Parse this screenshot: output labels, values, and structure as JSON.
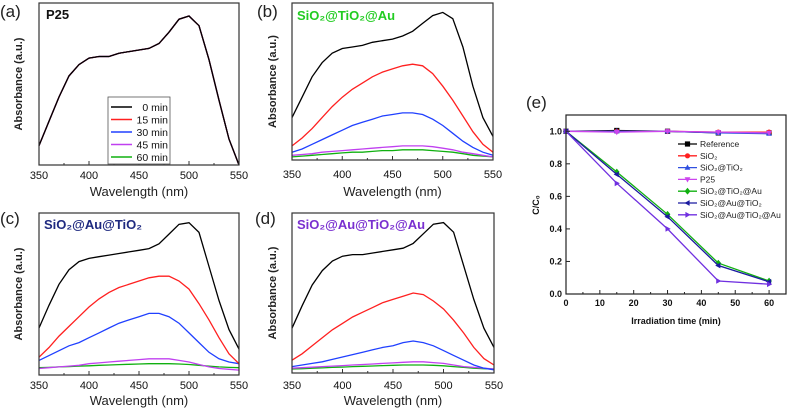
{
  "chart_data": [
    {
      "type": "line",
      "panel_label": "(a)",
      "title": "P25",
      "title_color": "#111111",
      "xlabel": "Wavelength (nm)",
      "ylabel": "Absorbance (a.u.)",
      "xlim": [
        350,
        550
      ],
      "xticks": [
        "350",
        "400",
        "450",
        "500",
        "550"
      ],
      "grid": false,
      "legend_position": "bottom-center",
      "x": [
        350,
        360,
        370,
        380,
        390,
        400,
        410,
        420,
        430,
        440,
        450,
        460,
        470,
        480,
        490,
        500,
        510,
        520,
        530,
        540,
        550
      ],
      "series": [
        {
          "name": "0 min",
          "color": "#000000",
          "values": [
            0.12,
            0.27,
            0.42,
            0.55,
            0.62,
            0.66,
            0.67,
            0.67,
            0.69,
            0.7,
            0.71,
            0.72,
            0.75,
            0.82,
            0.9,
            0.92,
            0.86,
            0.65,
            0.4,
            0.16,
            0.0
          ]
        },
        {
          "name": "15 min",
          "color": "#ff2020",
          "values": [
            0.12,
            0.27,
            0.42,
            0.55,
            0.62,
            0.66,
            0.67,
            0.67,
            0.69,
            0.7,
            0.71,
            0.72,
            0.75,
            0.82,
            0.9,
            0.92,
            0.86,
            0.65,
            0.4,
            0.16,
            0.0
          ]
        },
        {
          "name": "30 min",
          "color": "#2040ff",
          "values": [
            0.12,
            0.27,
            0.42,
            0.55,
            0.62,
            0.66,
            0.67,
            0.67,
            0.69,
            0.7,
            0.71,
            0.72,
            0.75,
            0.82,
            0.9,
            0.92,
            0.86,
            0.65,
            0.4,
            0.16,
            0.0
          ]
        },
        {
          "name": "45 min",
          "color": "#c040f0",
          "values": [
            0.12,
            0.27,
            0.42,
            0.55,
            0.62,
            0.66,
            0.67,
            0.67,
            0.69,
            0.7,
            0.71,
            0.72,
            0.75,
            0.82,
            0.9,
            0.92,
            0.86,
            0.65,
            0.4,
            0.16,
            0.0
          ]
        },
        {
          "name": "60 min",
          "color": "#10b010",
          "values": [
            0.12,
            0.27,
            0.42,
            0.55,
            0.62,
            0.66,
            0.67,
            0.67,
            0.69,
            0.7,
            0.71,
            0.72,
            0.75,
            0.82,
            0.9,
            0.92,
            0.86,
            0.65,
            0.4,
            0.16,
            0.0
          ]
        }
      ]
    },
    {
      "type": "line",
      "panel_label": "(b)",
      "title": "SiO₂@TiO₂@Au",
      "title_color": "#22cc22",
      "xlabel": "Wavelength (nm)",
      "ylabel": "Absorbance (a.u.)",
      "xlim": [
        350,
        550
      ],
      "xticks": [
        "350",
        "400",
        "450",
        "500",
        "550"
      ],
      "grid": false,
      "x": [
        350,
        360,
        370,
        380,
        390,
        400,
        410,
        420,
        430,
        440,
        450,
        460,
        470,
        480,
        490,
        500,
        510,
        520,
        530,
        540,
        550
      ],
      "series": [
        {
          "color": "#000000",
          "values": [
            0.27,
            0.4,
            0.53,
            0.62,
            0.68,
            0.71,
            0.72,
            0.73,
            0.75,
            0.76,
            0.77,
            0.79,
            0.82,
            0.87,
            0.92,
            0.94,
            0.9,
            0.72,
            0.47,
            0.27,
            0.15
          ]
        },
        {
          "color": "#ff2020",
          "values": [
            0.09,
            0.14,
            0.2,
            0.27,
            0.34,
            0.4,
            0.45,
            0.49,
            0.53,
            0.56,
            0.58,
            0.6,
            0.61,
            0.6,
            0.55,
            0.47,
            0.38,
            0.28,
            0.18,
            0.1,
            0.05
          ]
        },
        {
          "color": "#2040ff",
          "values": [
            0.05,
            0.07,
            0.1,
            0.13,
            0.16,
            0.19,
            0.22,
            0.24,
            0.26,
            0.28,
            0.29,
            0.3,
            0.3,
            0.29,
            0.26,
            0.22,
            0.17,
            0.12,
            0.08,
            0.05,
            0.03
          ]
        },
        {
          "color": "#c040f0",
          "values": [
            0.03,
            0.035,
            0.04,
            0.05,
            0.055,
            0.06,
            0.065,
            0.07,
            0.075,
            0.08,
            0.085,
            0.09,
            0.09,
            0.09,
            0.085,
            0.075,
            0.065,
            0.05,
            0.04,
            0.03,
            0.02
          ]
        },
        {
          "color": "#10b010",
          "values": [
            0.02,
            0.025,
            0.03,
            0.035,
            0.04,
            0.045,
            0.05,
            0.05,
            0.055,
            0.06,
            0.06,
            0.065,
            0.065,
            0.065,
            0.06,
            0.055,
            0.05,
            0.04,
            0.03,
            0.025,
            0.02
          ]
        }
      ]
    },
    {
      "type": "line",
      "panel_label": "(c)",
      "title": "SiO₂@Au@TiO₂",
      "title_color": "#1f2a80",
      "xlabel": "Wavelength (nm)",
      "ylabel": "Absorbance (a.u.)",
      "xlim": [
        350,
        550
      ],
      "xticks": [
        "350",
        "400",
        "450",
        "500",
        "550"
      ],
      "grid": false,
      "x": [
        350,
        360,
        370,
        380,
        390,
        400,
        410,
        420,
        430,
        440,
        450,
        460,
        470,
        480,
        490,
        500,
        510,
        520,
        530,
        540,
        550
      ],
      "series": [
        {
          "color": "#000000",
          "values": [
            0.29,
            0.43,
            0.56,
            0.65,
            0.7,
            0.72,
            0.73,
            0.74,
            0.75,
            0.76,
            0.77,
            0.78,
            0.81,
            0.87,
            0.93,
            0.94,
            0.88,
            0.67,
            0.46,
            0.28,
            0.16
          ]
        },
        {
          "color": "#ff2020",
          "values": [
            0.11,
            0.17,
            0.24,
            0.3,
            0.36,
            0.42,
            0.47,
            0.51,
            0.54,
            0.56,
            0.58,
            0.6,
            0.61,
            0.61,
            0.58,
            0.53,
            0.44,
            0.34,
            0.23,
            0.13,
            0.07
          ]
        },
        {
          "color": "#2040ff",
          "values": [
            0.09,
            0.12,
            0.15,
            0.18,
            0.2,
            0.23,
            0.26,
            0.29,
            0.32,
            0.34,
            0.36,
            0.38,
            0.38,
            0.36,
            0.32,
            0.26,
            0.2,
            0.14,
            0.1,
            0.08,
            0.07
          ]
        },
        {
          "color": "#c040f0",
          "values": [
            0.04,
            0.045,
            0.05,
            0.055,
            0.06,
            0.07,
            0.075,
            0.08,
            0.085,
            0.09,
            0.095,
            0.1,
            0.1,
            0.1,
            0.09,
            0.08,
            0.065,
            0.05,
            0.04,
            0.035,
            0.03
          ]
        },
        {
          "color": "#10b010",
          "values": [
            0.045,
            0.047,
            0.05,
            0.052,
            0.055,
            0.057,
            0.06,
            0.062,
            0.064,
            0.066,
            0.068,
            0.07,
            0.07,
            0.07,
            0.068,
            0.065,
            0.06,
            0.055,
            0.05,
            0.047,
            0.045
          ]
        }
      ]
    },
    {
      "type": "line",
      "panel_label": "(d)",
      "title": "SiO₂@Au@TiO₂@Au",
      "title_color": "#7a30d0",
      "xlabel": "Wavelength (nm)",
      "ylabel": "Absorbance (a.u.)",
      "xlim": [
        350,
        550
      ],
      "xticks": [
        "350",
        "400",
        "450",
        "500",
        "550"
      ],
      "grid": false,
      "x": [
        350,
        360,
        370,
        380,
        390,
        400,
        410,
        420,
        430,
        440,
        450,
        460,
        470,
        480,
        490,
        500,
        510,
        520,
        530,
        540,
        550
      ],
      "series": [
        {
          "color": "#000000",
          "values": [
            0.28,
            0.42,
            0.55,
            0.64,
            0.7,
            0.73,
            0.74,
            0.74,
            0.75,
            0.76,
            0.77,
            0.78,
            0.81,
            0.87,
            0.93,
            0.94,
            0.88,
            0.67,
            0.46,
            0.28,
            0.16
          ]
        },
        {
          "color": "#ff2020",
          "values": [
            0.08,
            0.12,
            0.17,
            0.22,
            0.27,
            0.31,
            0.35,
            0.38,
            0.41,
            0.44,
            0.46,
            0.48,
            0.5,
            0.49,
            0.45,
            0.4,
            0.33,
            0.25,
            0.16,
            0.09,
            0.05
          ]
        },
        {
          "color": "#2040ff",
          "values": [
            0.04,
            0.05,
            0.06,
            0.07,
            0.085,
            0.1,
            0.115,
            0.13,
            0.145,
            0.16,
            0.17,
            0.19,
            0.2,
            0.19,
            0.17,
            0.14,
            0.11,
            0.08,
            0.05,
            0.03,
            0.02
          ]
        },
        {
          "color": "#c040f0",
          "values": [
            0.03,
            0.033,
            0.036,
            0.04,
            0.043,
            0.046,
            0.05,
            0.053,
            0.056,
            0.06,
            0.063,
            0.067,
            0.07,
            0.07,
            0.065,
            0.06,
            0.05,
            0.04,
            0.035,
            0.03,
            0.025
          ]
        },
        {
          "color": "#10b010",
          "values": [
            0.025,
            0.027,
            0.03,
            0.032,
            0.035,
            0.037,
            0.04,
            0.042,
            0.044,
            0.046,
            0.048,
            0.05,
            0.05,
            0.05,
            0.048,
            0.045,
            0.04,
            0.035,
            0.03,
            0.027,
            0.025
          ]
        }
      ]
    },
    {
      "type": "line",
      "panel_label": "(e)",
      "xlabel": "Irradiation time (min)",
      "ylabel": "C/C₀",
      "xlim": [
        0,
        65
      ],
      "ylim": [
        0,
        1.1
      ],
      "xticks": [
        "0",
        "10",
        "20",
        "30",
        "40",
        "50",
        "60"
      ],
      "yticks": [
        "0.0",
        "0.2",
        "0.4",
        "0.6",
        "0.8",
        "1.0"
      ],
      "grid": false,
      "legend_position": "top-right",
      "x": [
        0,
        15,
        30,
        45,
        60
      ],
      "series": [
        {
          "name": "Reference",
          "color": "#000000",
          "marker": "square",
          "values": [
            1.0,
            1.005,
            1.0,
            0.99,
            0.99
          ]
        },
        {
          "name": "SiO₂",
          "color": "#ff2020",
          "marker": "circle",
          "values": [
            1.0,
            1.0,
            1.0,
            0.995,
            0.995
          ]
        },
        {
          "name": "SiO₂@TiO₂",
          "color": "#3050e0",
          "marker": "triangle-up",
          "values": [
            1.0,
            1.0,
            1.0,
            0.99,
            0.985
          ]
        },
        {
          "name": "P25",
          "color": "#cc44ee",
          "marker": "triangle-down",
          "values": [
            1.0,
            0.995,
            1.0,
            0.995,
            0.99
          ]
        },
        {
          "name": "SiO₂@TiO₂@Au",
          "color": "#10b010",
          "marker": "diamond",
          "values": [
            1.0,
            0.75,
            0.49,
            0.19,
            0.08
          ]
        },
        {
          "name": "SiO₂@Au@TiO₂",
          "color": "#1a1aa0",
          "marker": "triangle-left",
          "values": [
            1.0,
            0.735,
            0.475,
            0.175,
            0.075
          ]
        },
        {
          "name": "SiO₂@Au@TiO₂@Au",
          "color": "#7030e0",
          "marker": "triangle-right",
          "values": [
            1.0,
            0.68,
            0.4,
            0.08,
            0.06
          ]
        }
      ]
    }
  ]
}
